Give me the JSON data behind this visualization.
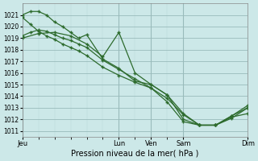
{
  "background_color": "#cce8e8",
  "grid_major_color": "#99bbbb",
  "grid_minor_color": "#b8d8d8",
  "line_color": "#2d6b2d",
  "ylim": [
    1010.5,
    1022.0
  ],
  "yticks": [
    1011,
    1012,
    1013,
    1014,
    1015,
    1016,
    1017,
    1018,
    1019,
    1020,
    1021
  ],
  "xlabel": "Pression niveau de la mer( hPa )",
  "day_labels": [
    "Jeu",
    "Lun",
    "Ven",
    "Sam",
    "Dim"
  ],
  "day_label_fontsize": 6,
  "xlabel_fontsize": 7,
  "ytick_fontsize": 5.5,
  "total_hours": 120,
  "day_hours": [
    0,
    72,
    96,
    120,
    168
  ],
  "series": [
    {
      "x_hours": [
        0,
        12,
        24,
        36,
        48,
        60,
        72,
        84,
        96,
        108,
        120,
        132,
        144,
        156,
        168
      ],
      "y": [
        1019.0,
        1019.4,
        1019.5,
        1019.2,
        1018.5,
        1017.4,
        1019.5,
        1016.0,
        1015.0,
        1014.1,
        1012.5,
        1011.5,
        1011.5,
        1012.3,
        1013.0
      ]
    },
    {
      "x_hours": [
        0,
        6,
        12,
        18,
        24,
        30,
        36,
        42,
        48,
        60,
        72,
        84,
        96,
        108,
        120,
        132,
        144,
        156,
        168
      ],
      "y": [
        1021.0,
        1021.3,
        1021.3,
        1021.0,
        1020.4,
        1020.0,
        1019.5,
        1019.0,
        1019.3,
        1017.2,
        1016.4,
        1015.3,
        1015.0,
        1014.1,
        1012.0,
        1011.5,
        1011.5,
        1012.3,
        1013.2
      ]
    },
    {
      "x_hours": [
        0,
        6,
        12,
        18,
        24,
        30,
        36,
        42,
        48,
        60,
        72,
        84,
        96,
        108,
        120,
        132,
        144,
        156,
        168
      ],
      "y": [
        1020.8,
        1020.2,
        1019.6,
        1019.2,
        1018.9,
        1018.5,
        1018.2,
        1017.9,
        1017.5,
        1016.5,
        1015.8,
        1015.2,
        1014.7,
        1013.8,
        1012.4,
        1011.5,
        1011.5,
        1012.1,
        1013.0
      ]
    },
    {
      "x_hours": [
        0,
        6,
        12,
        18,
        24,
        30,
        36,
        42,
        48,
        60,
        72,
        84,
        96,
        108,
        120,
        132,
        144,
        156,
        168
      ],
      "y": [
        1019.2,
        1019.5,
        1019.7,
        1019.6,
        1019.3,
        1019.0,
        1018.8,
        1018.5,
        1018.2,
        1017.1,
        1016.3,
        1015.5,
        1014.7,
        1013.5,
        1011.8,
        1011.5,
        1011.5,
        1012.2,
        1012.5
      ]
    }
  ]
}
